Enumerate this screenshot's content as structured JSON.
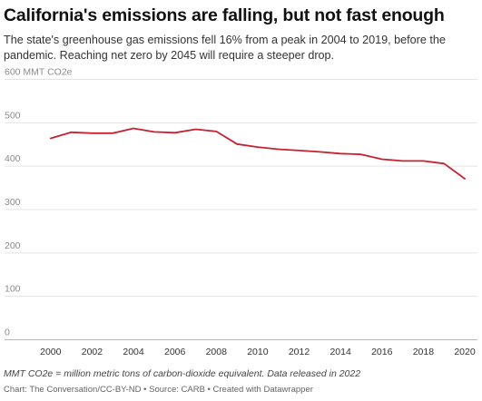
{
  "title": "California's emissions are falling, but not fast enough",
  "subtitle": "The state's greenhouse gas emissions fell 16% from a peak in 2004 to 2019, before the pandemic. Reaching net zero by 2045 will require a steeper drop.",
  "note": "MMT CO2e = million metric tons of carbon-dioxide equivalent. Data released in 2022",
  "source": "Chart: The Conversation/CC-BY-ND • Source: CARB • Created with Datawrapper",
  "chart_data": {
    "type": "line",
    "title": "California's emissions are falling, but not fast enough",
    "ylabel_unit": "MMT CO2e",
    "ylim": [
      0,
      600
    ],
    "xlim": [
      1999,
      2020
    ],
    "y_ticks": [
      0,
      100,
      200,
      300,
      400,
      500,
      600
    ],
    "y_tick_labels": [
      "0",
      "100",
      "200",
      "300",
      "400",
      "500",
      "600 MMT CO2e"
    ],
    "x_ticks": [
      2000,
      2002,
      2004,
      2006,
      2008,
      2010,
      2012,
      2014,
      2016,
      2018,
      2020
    ],
    "x_tick_labels": [
      "2000",
      "2002",
      "2004",
      "2006",
      "2008",
      "2010",
      "2012",
      "2014",
      "2016",
      "2018",
      "2020"
    ],
    "grid": true,
    "series": [
      {
        "color": "#c8202f",
        "x": [
          2000,
          2001,
          2002,
          2003,
          2004,
          2005,
          2006,
          2007,
          2008,
          2009,
          2010,
          2011,
          2012,
          2013,
          2014,
          2015,
          2016,
          2017,
          2018,
          2019,
          2020
        ],
        "values": [
          463,
          477,
          475,
          475,
          486,
          478,
          476,
          484,
          479,
          450,
          443,
          438,
          435,
          432,
          428,
          426,
          415,
          411,
          411,
          405,
          370
        ]
      }
    ]
  }
}
